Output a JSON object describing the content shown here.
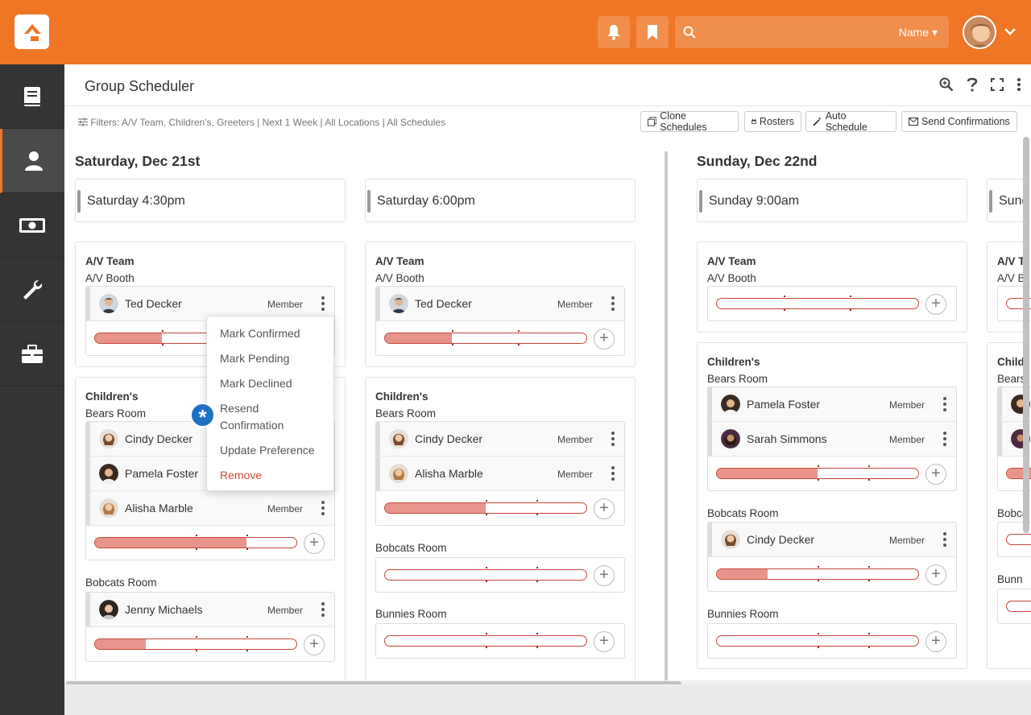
{
  "header": {
    "search_scope": "Name"
  },
  "page": {
    "title": "Group Scheduler"
  },
  "filters": "Filters: A/V Team, Children's, Greeters | Next 1 Week | All Locations | All Schedules",
  "actions": {
    "clone": "Clone Schedules",
    "rosters": "Rosters",
    "auto": "Auto Schedule",
    "send": "Send Confirmations"
  },
  "days": [
    {
      "title": "Saturday, Dec 21st",
      "schedules": [
        "Saturday 4:30pm",
        "Saturday 6:00pm"
      ]
    },
    {
      "title": "Sunday, Dec 22nd",
      "schedules": [
        "Sunday 9:00am",
        "Sund"
      ]
    }
  ],
  "groups": {
    "av": "A/V Team",
    "children": "Children's",
    "booth": "A/V Booth",
    "bears": "Bears Room",
    "bobcats": "Bobcats Room",
    "bunnies": "Bunnies Room",
    "av_clip": "A/V T",
    "booth_clip": "A/V B",
    "children_clip": "Child",
    "bears_clip": "Bears",
    "bobcats_clip": "Bobca",
    "bunnies_clip": "Bunn"
  },
  "people": {
    "ted": "Ted Decker",
    "cindy": "Cindy Decker",
    "pamela": "Pamela Foster",
    "alisha": "Alisha Marble",
    "jenny": "Jenny Michaels",
    "sarah": "Sarah Simmons"
  },
  "role": "Member",
  "menu": {
    "confirmed": "Mark Confirmed",
    "pending": "Mark Pending",
    "declined": "Mark Declined",
    "resend": "Resend",
    "resend2": "Confirmation",
    "pref": "Update Preference",
    "remove": "Remove"
  },
  "progress": {
    "sat430_av": 0.33,
    "sat430_bears": 0.75,
    "sat430_bobcats": 0.25,
    "sat600_av": 0.33,
    "sat600_bears": 0.5,
    "sat600_bobcats": 0,
    "sat600_bunnies": 0,
    "sun900_av": 0,
    "sun900_bears": 0.5,
    "sun900_bobcats": 0.25,
    "sun900_bunnies": 0
  },
  "colors": {
    "brand": "#ee7624",
    "sidebar": "#343434",
    "progress_border": "#c6463a",
    "progress_fill": "#e8948b",
    "badge": "#1f6fc4"
  }
}
